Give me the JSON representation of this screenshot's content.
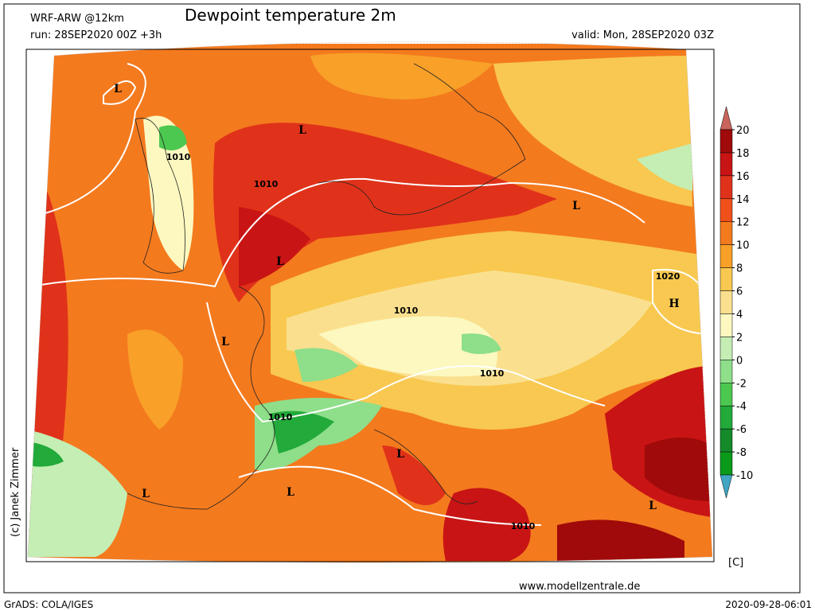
{
  "header": {
    "model": "WRF-ARW @12km",
    "title": "Dewpoint temperature 2m",
    "run": "run: 28SEP2020 00Z +3h",
    "valid": "valid: Mon, 28SEP2020 03Z"
  },
  "map": {
    "labels": [
      "L",
      "L",
      "L",
      "L",
      "L",
      "L",
      "L",
      "L",
      "L",
      "H",
      "1010",
      "1010",
      "1010",
      "1010",
      "1010",
      "1010",
      "1020"
    ]
  },
  "colorbar": {
    "ticks": [
      20,
      18,
      16,
      14,
      12,
      10,
      8,
      6,
      4,
      2,
      0,
      -2,
      -4,
      -6,
      -8,
      -10
    ],
    "colors": [
      "#c8645c",
      "#a00a0a",
      "#c81414",
      "#e0321a",
      "#f0501a",
      "#f47a1e",
      "#f8a028",
      "#f8c850",
      "#faE08e",
      "#fcf8c0",
      "#c4eeb4",
      "#8ede8a",
      "#4cc850",
      "#22aa3a",
      "#148a2a",
      "#0a9a1a",
      "#40a6c4"
    ],
    "unit": "[C]"
  },
  "credit": "(c) Janek Zimmer",
  "website": "www.modellzentrale.de",
  "footer": {
    "left": "GrADS: COLA/IGES",
    "right": "2020-09-28-06:01"
  }
}
